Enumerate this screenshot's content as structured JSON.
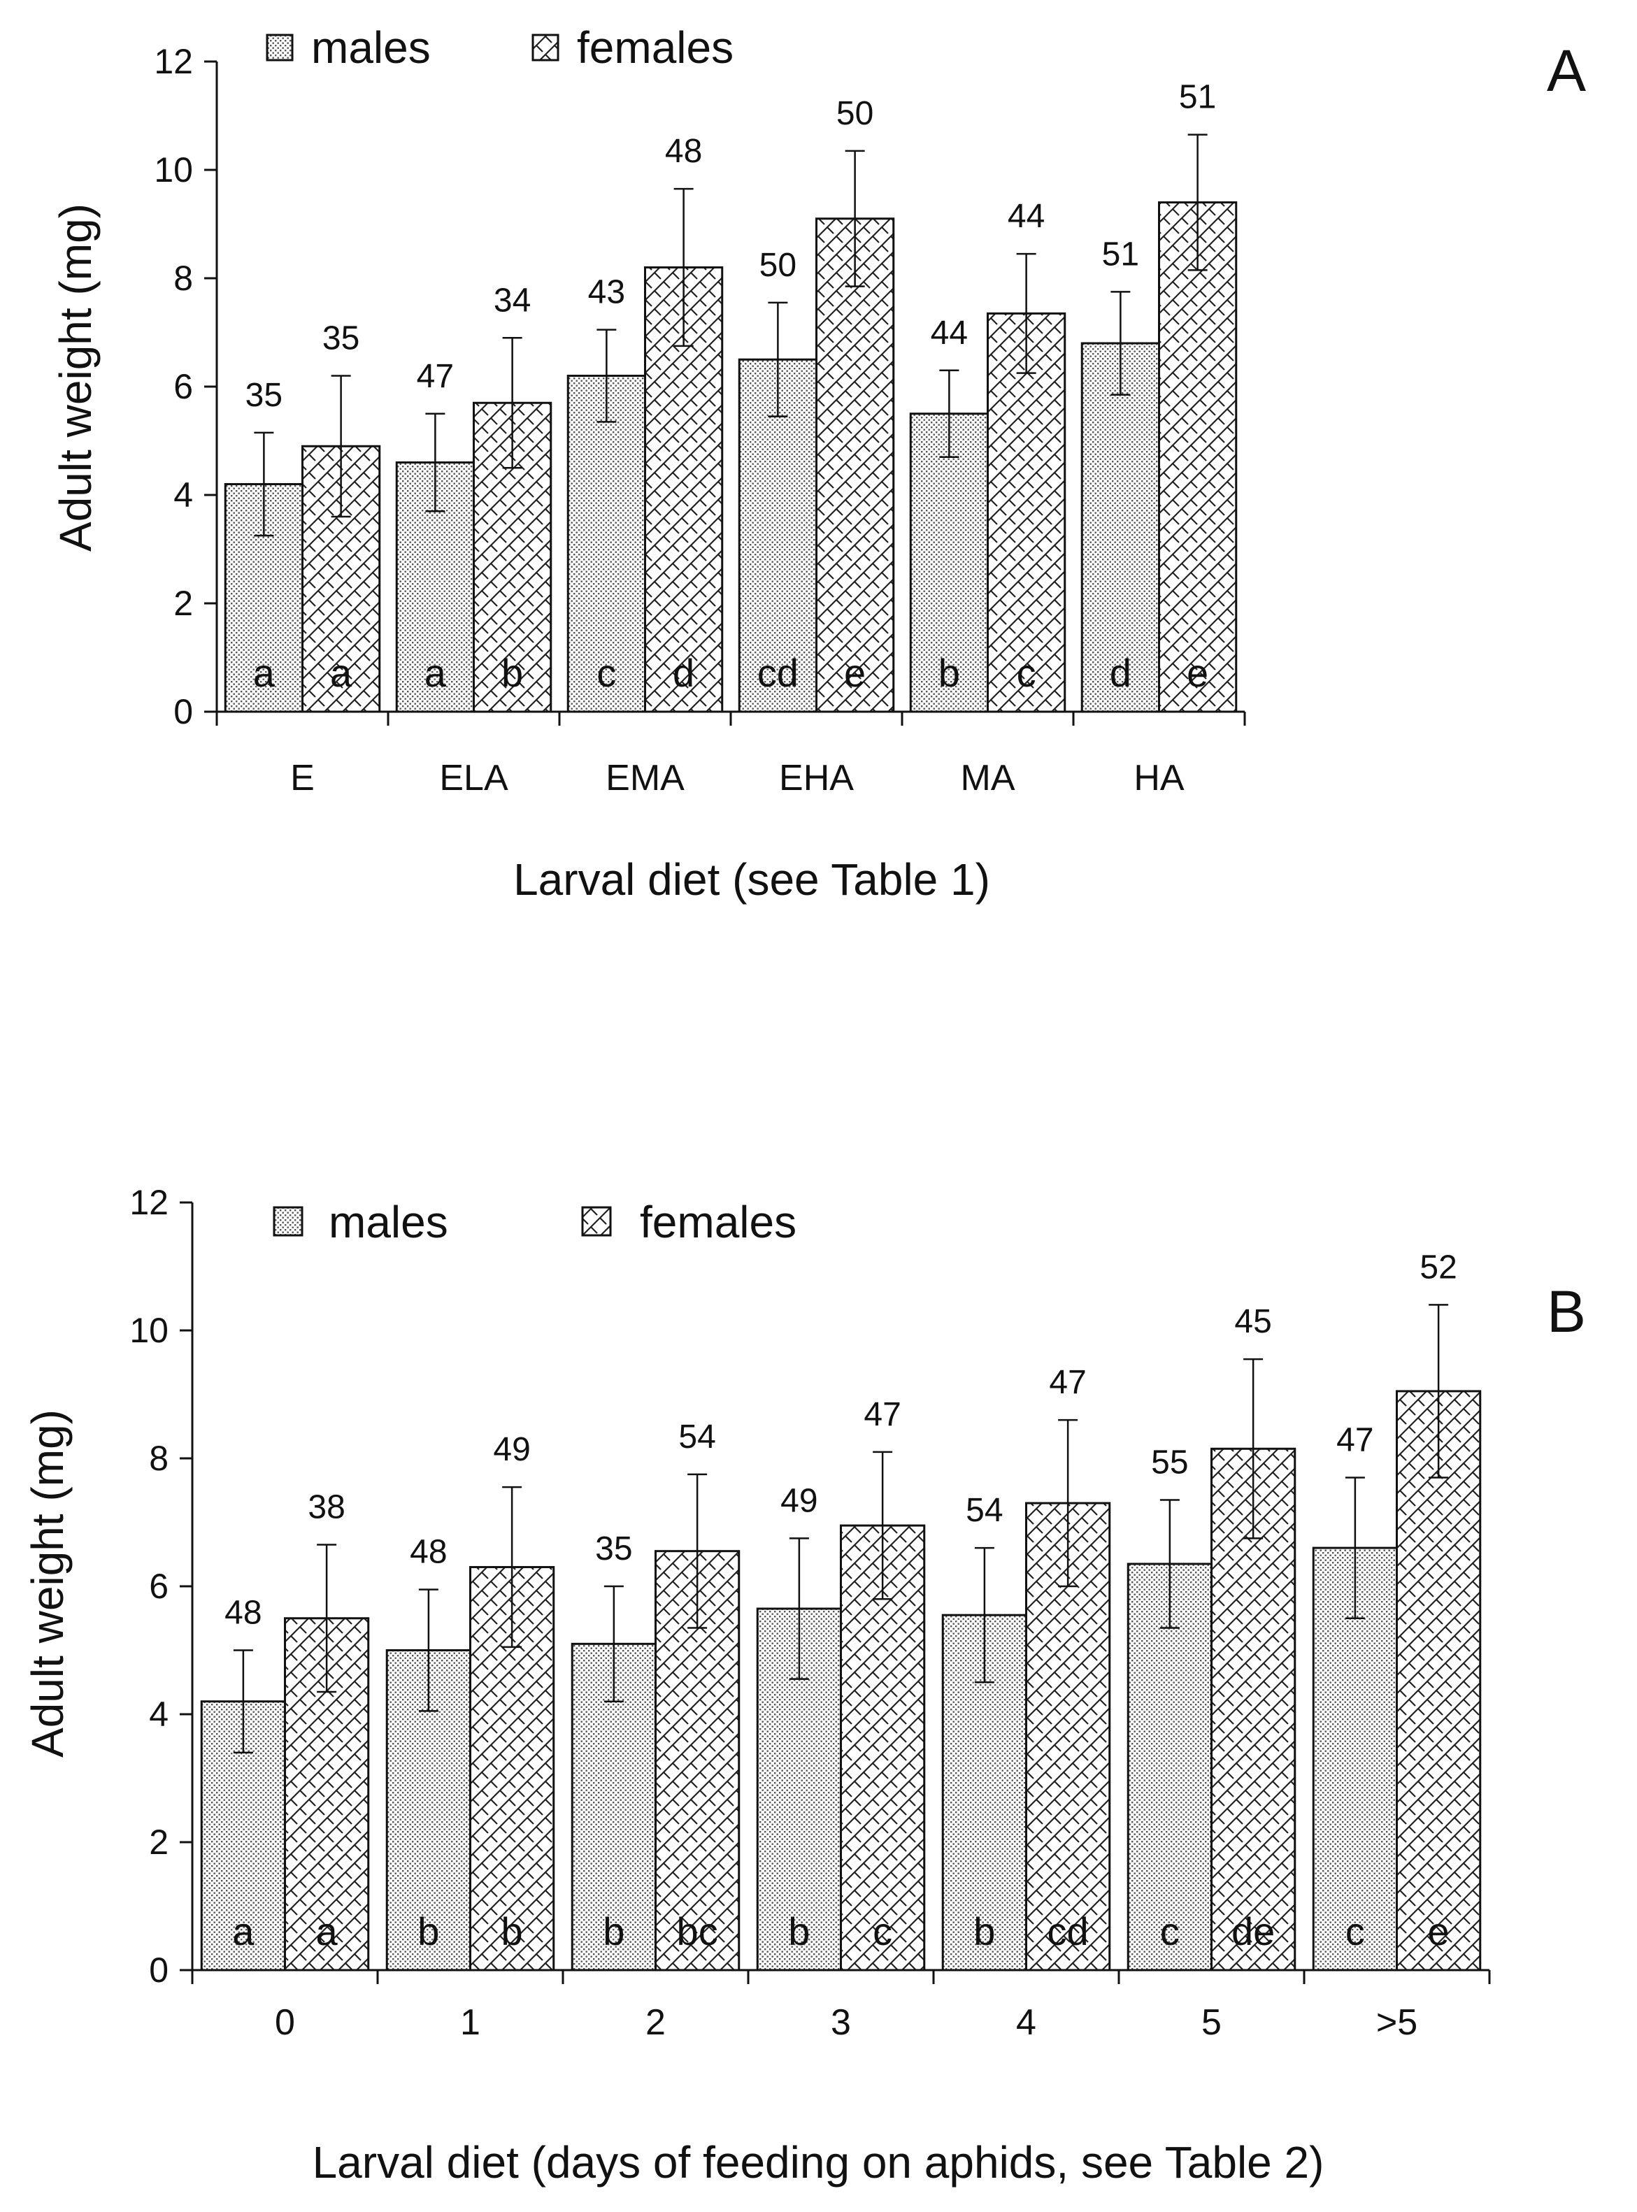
{
  "chart_data": [
    {
      "panel_label": "A",
      "type": "bar",
      "ylabel": "Adult weight (mg)",
      "xlabel": "Larval diet (see Table 1)",
      "ylim": [
        0,
        12
      ],
      "yticks": [
        "0",
        "2",
        "4",
        "6",
        "8",
        "10",
        "12"
      ],
      "categories": [
        "E",
        "ELA",
        "EMA",
        "EHA",
        "MA",
        "HA"
      ],
      "series": [
        {
          "name": "males",
          "values": [
            4.2,
            4.6,
            6.2,
            6.5,
            5.5,
            6.8
          ],
          "errors": [
            0.95,
            0.9,
            0.85,
            1.05,
            0.8,
            0.95
          ],
          "n": [
            "35",
            "47",
            "43",
            "50",
            "44",
            "51"
          ],
          "letters": [
            "a",
            "a",
            "c",
            "cd",
            "b",
            "d"
          ]
        },
        {
          "name": "females",
          "values": [
            4.9,
            5.7,
            8.2,
            9.1,
            7.35,
            9.4
          ],
          "errors": [
            1.3,
            1.2,
            1.45,
            1.25,
            1.1,
            1.25
          ],
          "n": [
            "35",
            "34",
            "48",
            "50",
            "44",
            "51"
          ],
          "letters": [
            "a",
            "b",
            "d",
            "e",
            "c",
            "e"
          ]
        }
      ]
    },
    {
      "panel_label": "B",
      "type": "bar",
      "ylabel": "Adult weight (mg)",
      "xlabel": "Larval diet (days of feeding on aphids, see Table 2)",
      "ylim": [
        0,
        12
      ],
      "yticks": [
        "0",
        "2",
        "4",
        "6",
        "8",
        "10",
        "12"
      ],
      "categories": [
        "0",
        "1",
        "2",
        "3",
        "4",
        "5",
        ">5"
      ],
      "series": [
        {
          "name": "males",
          "values": [
            4.2,
            5.0,
            5.1,
            5.65,
            5.55,
            6.35,
            6.6
          ],
          "errors": [
            0.8,
            0.95,
            0.9,
            1.1,
            1.05,
            1.0,
            1.1
          ],
          "n": [
            "48",
            "48",
            "35",
            "49",
            "54",
            "55",
            "47"
          ],
          "letters": [
            "a",
            "b",
            "b",
            "b",
            "b",
            "c",
            "c"
          ]
        },
        {
          "name": "females",
          "values": [
            5.5,
            6.3,
            6.55,
            6.95,
            7.3,
            8.15,
            9.05
          ],
          "errors": [
            1.15,
            1.25,
            1.2,
            1.15,
            1.3,
            1.4,
            1.35
          ],
          "n": [
            "38",
            "49",
            "54",
            "47",
            "47",
            "45",
            "52"
          ],
          "letters": [
            "a",
            "b",
            "bc",
            "c",
            "cd",
            "de",
            "e"
          ]
        }
      ]
    }
  ]
}
